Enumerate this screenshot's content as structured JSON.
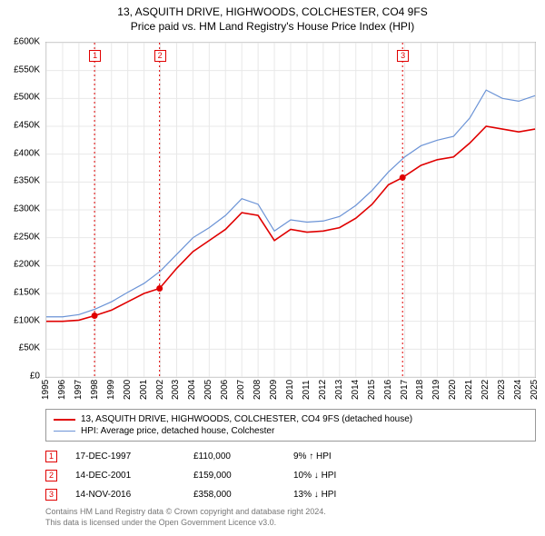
{
  "title_line1": "13, ASQUITH DRIVE, HIGHWOODS, COLCHESTER, CO4 9FS",
  "title_line2": "Price paid vs. HM Land Registry's House Price Index (HPI)",
  "chart": {
    "type": "line",
    "background_color": "#ffffff",
    "grid_color": "#e8e8e8",
    "border_color": "#bbbbbb",
    "ylim": [
      0,
      600000
    ],
    "ytick_step": 50000,
    "yticks": [
      "£0",
      "£50K",
      "£100K",
      "£150K",
      "£200K",
      "£250K",
      "£300K",
      "£350K",
      "£400K",
      "£450K",
      "£500K",
      "£550K",
      "£600K"
    ],
    "xlim": [
      1995,
      2025
    ],
    "xticks": [
      1995,
      1996,
      1997,
      1998,
      1999,
      2000,
      2001,
      2002,
      2003,
      2004,
      2005,
      2006,
      2007,
      2008,
      2009,
      2010,
      2011,
      2012,
      2013,
      2014,
      2015,
      2016,
      2017,
      2018,
      2019,
      2020,
      2021,
      2022,
      2023,
      2024,
      2025
    ],
    "series": [
      {
        "name": "13, ASQUITH DRIVE, HIGHWOODS, COLCHESTER, CO4 9FS (detached house)",
        "color": "#e00000",
        "line_width": 1.6,
        "data": [
          [
            1995,
            100000
          ],
          [
            1996,
            100000
          ],
          [
            1997,
            102000
          ],
          [
            1997.96,
            110000
          ],
          [
            1999,
            120000
          ],
          [
            2000,
            135000
          ],
          [
            2001,
            150000
          ],
          [
            2001.95,
            159000
          ],
          [
            2003,
            195000
          ],
          [
            2004,
            225000
          ],
          [
            2005,
            245000
          ],
          [
            2006,
            265000
          ],
          [
            2007,
            295000
          ],
          [
            2008,
            290000
          ],
          [
            2009,
            245000
          ],
          [
            2010,
            265000
          ],
          [
            2011,
            260000
          ],
          [
            2012,
            262000
          ],
          [
            2013,
            268000
          ],
          [
            2014,
            285000
          ],
          [
            2015,
            310000
          ],
          [
            2016,
            345000
          ],
          [
            2016.87,
            358000
          ],
          [
            2018,
            380000
          ],
          [
            2019,
            390000
          ],
          [
            2020,
            395000
          ],
          [
            2021,
            420000
          ],
          [
            2022,
            450000
          ],
          [
            2023,
            445000
          ],
          [
            2024,
            440000
          ],
          [
            2025,
            445000
          ]
        ]
      },
      {
        "name": "HPI: Average price, detached house, Colchester",
        "color": "#6b93d6",
        "line_width": 1.2,
        "data": [
          [
            1995,
            108000
          ],
          [
            1996,
            108000
          ],
          [
            1997,
            112000
          ],
          [
            1998,
            122000
          ],
          [
            1999,
            135000
          ],
          [
            2000,
            152000
          ],
          [
            2001,
            168000
          ],
          [
            2002,
            190000
          ],
          [
            2003,
            220000
          ],
          [
            2004,
            250000
          ],
          [
            2005,
            268000
          ],
          [
            2006,
            290000
          ],
          [
            2007,
            320000
          ],
          [
            2008,
            310000
          ],
          [
            2009,
            262000
          ],
          [
            2010,
            282000
          ],
          [
            2011,
            278000
          ],
          [
            2012,
            280000
          ],
          [
            2013,
            288000
          ],
          [
            2014,
            308000
          ],
          [
            2015,
            335000
          ],
          [
            2016,
            368000
          ],
          [
            2017,
            395000
          ],
          [
            2018,
            415000
          ],
          [
            2019,
            425000
          ],
          [
            2020,
            432000
          ],
          [
            2021,
            465000
          ],
          [
            2022,
            515000
          ],
          [
            2023,
            500000
          ],
          [
            2024,
            495000
          ],
          [
            2025,
            505000
          ]
        ]
      }
    ],
    "sale_markers": [
      {
        "n": "1",
        "year": 1997.96,
        "price": 110000
      },
      {
        "n": "2",
        "year": 2001.95,
        "price": 159000
      },
      {
        "n": "3",
        "year": 2016.87,
        "price": 358000
      }
    ],
    "marker_line_color": "#e00000",
    "marker_dot_color": "#e00000"
  },
  "legend": {
    "items": [
      {
        "color": "#e00000",
        "width": 2,
        "label": "13, ASQUITH DRIVE, HIGHWOODS, COLCHESTER, CO4 9FS (detached house)"
      },
      {
        "color": "#6b93d6",
        "width": 1,
        "label": "HPI: Average price, detached house, Colchester"
      }
    ]
  },
  "sales_table": [
    {
      "n": "1",
      "date": "17-DEC-1997",
      "price": "£110,000",
      "diff": "9% ↑ HPI"
    },
    {
      "n": "2",
      "date": "14-DEC-2001",
      "price": "£159,000",
      "diff": "10% ↓ HPI"
    },
    {
      "n": "3",
      "date": "14-NOV-2016",
      "price": "£358,000",
      "diff": "13% ↓ HPI"
    }
  ],
  "footer_line1": "Contains HM Land Registry data © Crown copyright and database right 2024.",
  "footer_line2": "This data is licensed under the Open Government Licence v3.0."
}
